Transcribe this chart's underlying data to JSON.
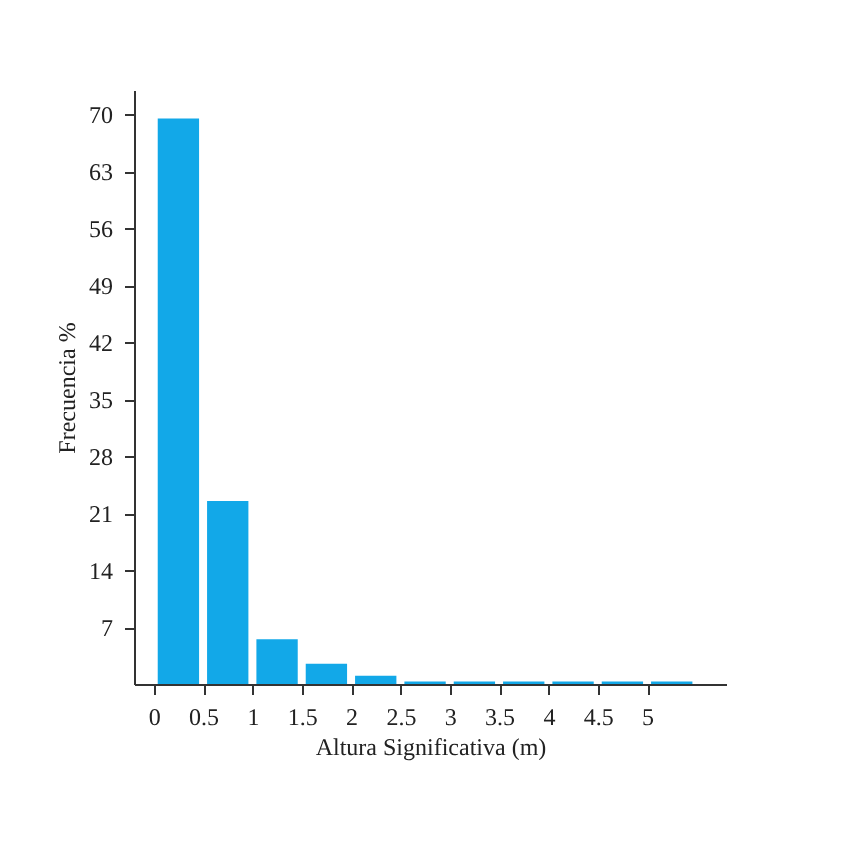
{
  "chart_data": {
    "type": "histogram",
    "xlabel": "Altura Significativa (m)",
    "ylabel": "Frecuencia %",
    "bins": [
      0,
      0.5,
      1,
      1.5,
      2,
      2.5,
      3,
      3.5,
      4,
      4.5,
      5,
      5.5
    ],
    "values": [
      69.5,
      22.5,
      5.5,
      2.5,
      1,
      0.3,
      0.3,
      0.3,
      0.3,
      0.3,
      0.3
    ],
    "color": "#12a8e8",
    "xlim": [
      -0.2,
      5.8
    ],
    "xticks": [
      0,
      0.5,
      1,
      1.5,
      2,
      2.5,
      3,
      3.5,
      4,
      4.5,
      5
    ],
    "ylim": [
      0,
      73
    ],
    "yticks": [
      7,
      14,
      21,
      28,
      35,
      42,
      49,
      56,
      63,
      70
    ],
    "grid": false
  }
}
